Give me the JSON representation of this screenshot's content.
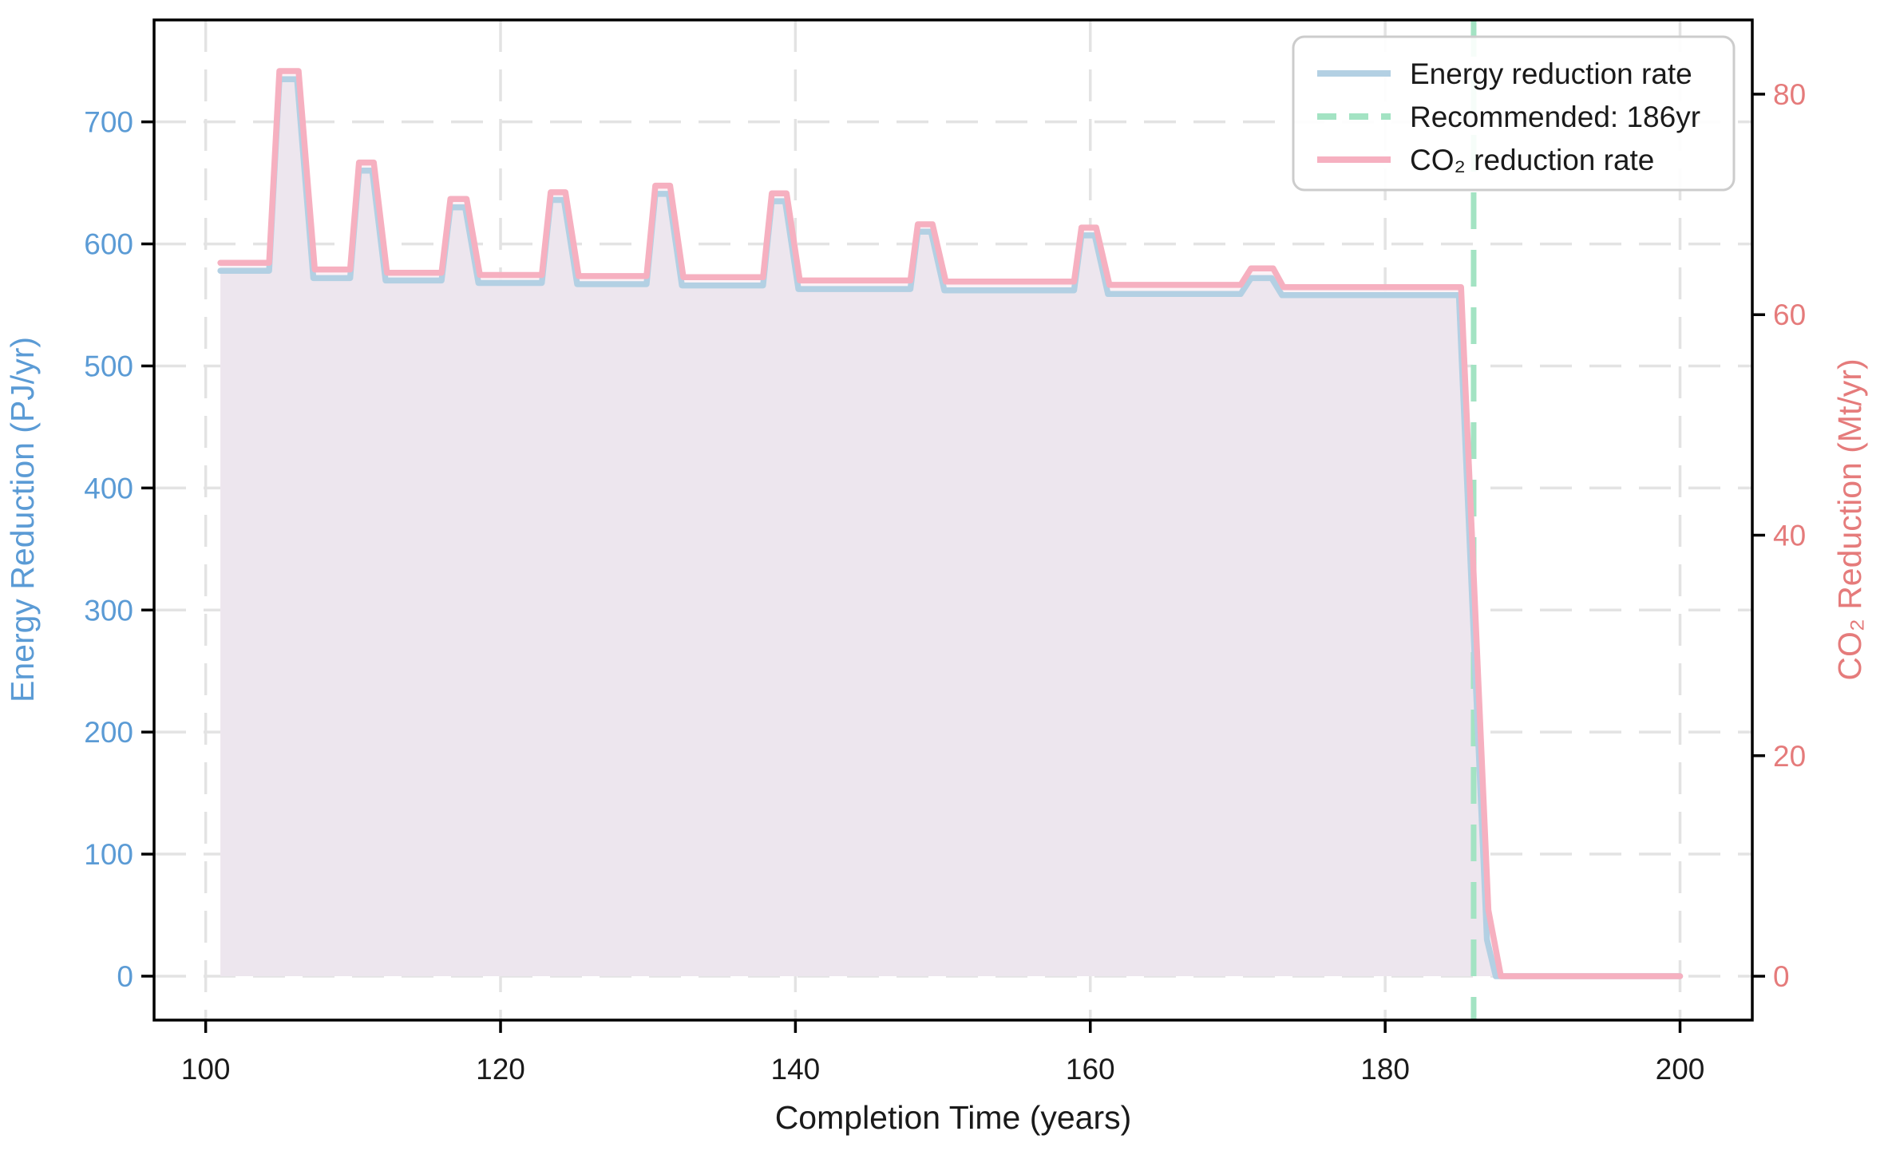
{
  "chart_data": {
    "type": "line",
    "title": "",
    "xlabel": "Completion Time (years)",
    "ylabel_left": "Energy Reduction (PJ/yr)",
    "ylabel_right": "CO₂ Reduction (Mt/yr)",
    "xlim": [
      96.5,
      204.9
    ],
    "ylim_left": [
      -36,
      783.5
    ],
    "ylim_right": [
      -3.98,
      86.73
    ],
    "xticks": [
      100,
      120,
      140,
      160,
      180,
      200
    ],
    "yticks_left": [
      0,
      100,
      200,
      300,
      400,
      500,
      600,
      700
    ],
    "yticks_right": [
      0,
      20,
      40,
      60,
      80
    ],
    "grid": true,
    "legend_position": "upper right",
    "vline": {
      "x": 186,
      "label": "Recommended: 186yr",
      "color": "#A3E3C3",
      "dash": true
    },
    "series": [
      {
        "name": "CO₂ reduction rate",
        "axis": "right",
        "color": "#F6B0C0",
        "fill": "#FCF1F5",
        "points": [
          [
            101,
            64.7
          ],
          [
            104.3,
            64.7
          ],
          [
            105,
            82.1
          ],
          [
            106.3,
            82.1
          ],
          [
            107.4,
            64.1
          ],
          [
            109.8,
            64.1
          ],
          [
            110.4,
            73.8
          ],
          [
            111.4,
            73.8
          ],
          [
            112.3,
            63.8
          ],
          [
            116,
            63.8
          ],
          [
            116.6,
            70.5
          ],
          [
            117.7,
            70.5
          ],
          [
            118.6,
            63.6
          ],
          [
            122.8,
            63.6
          ],
          [
            123.4,
            71.1
          ],
          [
            124.4,
            71.1
          ],
          [
            125.3,
            63.5
          ],
          [
            129.9,
            63.5
          ],
          [
            130.5,
            71.7
          ],
          [
            131.5,
            71.7
          ],
          [
            132.4,
            63.4
          ],
          [
            137.8,
            63.4
          ],
          [
            138.4,
            71.0
          ],
          [
            139.4,
            71.0
          ],
          [
            140.3,
            63.1
          ],
          [
            147.8,
            63.1
          ],
          [
            148.3,
            68.2
          ],
          [
            149.3,
            68.2
          ],
          [
            150.2,
            63.0
          ],
          [
            158.9,
            63.0
          ],
          [
            159.4,
            67.9
          ],
          [
            160.4,
            67.9
          ],
          [
            161.3,
            62.7
          ],
          [
            170.2,
            62.7
          ],
          [
            170.9,
            64.2
          ],
          [
            172.4,
            64.2
          ],
          [
            173.1,
            62.5
          ],
          [
            185.15,
            62.5
          ],
          [
            187,
            6
          ],
          [
            187.85,
            0
          ],
          [
            200,
            0
          ]
        ]
      },
      {
        "name": "Energy reduction rate",
        "axis": "left",
        "color": "#B3D0E3",
        "fill": "#ECE5ED",
        "points": [
          [
            101,
            578
          ],
          [
            104.3,
            578
          ],
          [
            105,
            735
          ],
          [
            106.2,
            735
          ],
          [
            107.3,
            572
          ],
          [
            109.8,
            572
          ],
          [
            110.4,
            660
          ],
          [
            111.3,
            660
          ],
          [
            112.2,
            570
          ],
          [
            116,
            570
          ],
          [
            116.6,
            630
          ],
          [
            117.6,
            630
          ],
          [
            118.5,
            568
          ],
          [
            122.8,
            568
          ],
          [
            123.4,
            636
          ],
          [
            124.3,
            636
          ],
          [
            125.2,
            567
          ],
          [
            129.9,
            567
          ],
          [
            130.5,
            641
          ],
          [
            131.4,
            641
          ],
          [
            132.3,
            566
          ],
          [
            137.8,
            566
          ],
          [
            138.4,
            635
          ],
          [
            139.3,
            635
          ],
          [
            140.2,
            563
          ],
          [
            147.8,
            563
          ],
          [
            148.3,
            610
          ],
          [
            149.2,
            610
          ],
          [
            150.1,
            562
          ],
          [
            158.9,
            562
          ],
          [
            159.4,
            607
          ],
          [
            160.3,
            607
          ],
          [
            161.2,
            559
          ],
          [
            170.2,
            559
          ],
          [
            170.9,
            572
          ],
          [
            172.3,
            572
          ],
          [
            173,
            558
          ],
          [
            185,
            558
          ],
          [
            186.9,
            30
          ],
          [
            187.5,
            0
          ],
          [
            200,
            0
          ]
        ]
      }
    ],
    "legend": {
      "items": [
        {
          "label": "Energy reduction rate",
          "color": "#B3D0E3",
          "dash": false
        },
        {
          "label": "Recommended: 186yr",
          "color": "#A3E3C3",
          "dash": true
        },
        {
          "label": "CO₂ reduction rate",
          "color": "#F6B0C0",
          "dash": false
        }
      ]
    },
    "colors": {
      "left_axis": "#5B9BD5",
      "right_axis": "#E57B7B",
      "tick_label": "#1a1a1a",
      "grid": "#E3E3E3",
      "spine": "#000000",
      "legend_border": "#CCCCCC"
    }
  }
}
